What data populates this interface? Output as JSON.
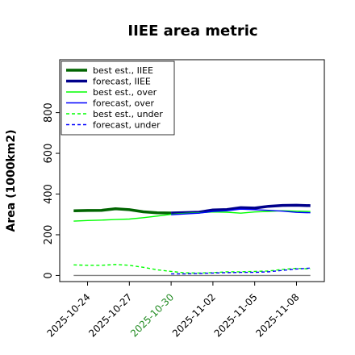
{
  "chart_data": {
    "type": "line",
    "title": "IIEE area metric",
    "xlabel": "",
    "ylabel": "Area (1000km2)",
    "x": [
      "2025-10-23",
      "2025-10-24",
      "2025-10-25",
      "2025-10-26",
      "2025-10-27",
      "2025-10-28",
      "2025-10-29",
      "2025-10-30",
      "2025-10-31",
      "2025-11-01",
      "2025-11-02",
      "2025-11-03",
      "2025-11-04",
      "2025-11-05",
      "2025-11-06",
      "2025-11-07",
      "2025-11-08",
      "2025-11-09"
    ],
    "xticks": [
      "2025-10-24",
      "2025-10-27",
      "2025-10-30",
      "2025-11-02",
      "2025-11-05",
      "2025-11-08"
    ],
    "highlight_tick": "2025-10-30",
    "highlight_color": "#228b22",
    "xlim": [
      "2025-10-22",
      "2025-11-10"
    ],
    "ylim": [
      -30,
      1060
    ],
    "yticks": [
      0,
      200,
      400,
      600,
      800
    ],
    "grid": false,
    "legend_position": "top-left",
    "series": [
      {
        "name": "best est., IIEE",
        "color": "#006400",
        "style": "solid",
        "width": "thick",
        "x": [
          "2025-10-23",
          "2025-10-24",
          "2025-10-25",
          "2025-10-26",
          "2025-10-27",
          "2025-10-28",
          "2025-10-29",
          "2025-10-30"
        ],
        "values": [
          318,
          319,
          320,
          328,
          323,
          313,
          308,
          307
        ]
      },
      {
        "name": "forecast, IIEE",
        "color": "#00008b",
        "style": "solid",
        "width": "thick",
        "x": [
          "2025-10-30",
          "2025-10-31",
          "2025-11-01",
          "2025-11-02",
          "2025-11-03",
          "2025-11-04",
          "2025-11-05",
          "2025-11-06",
          "2025-11-07",
          "2025-11-08",
          "2025-11-09"
        ],
        "values": [
          307,
          309,
          311,
          322,
          324,
          333,
          331,
          340,
          344,
          345,
          343
        ]
      },
      {
        "name": "best est., over",
        "color": "#00ff00",
        "style": "solid",
        "width": "thin",
        "x": [
          "2025-10-23",
          "2025-10-24",
          "2025-10-25",
          "2025-10-26",
          "2025-10-27",
          "2025-10-28",
          "2025-10-29",
          "2025-10-30",
          "2025-10-31",
          "2025-11-01",
          "2025-11-02",
          "2025-11-03",
          "2025-11-04",
          "2025-11-05",
          "2025-11-06",
          "2025-11-07",
          "2025-11-08",
          "2025-11-09"
        ],
        "values": [
          267,
          270,
          272,
          275,
          277,
          284,
          292,
          300,
          305,
          308,
          312,
          311,
          306,
          312,
          315,
          318,
          316,
          314
        ]
      },
      {
        "name": "forecast, over",
        "color": "#0000ff",
        "style": "solid",
        "width": "thin",
        "x": [
          "2025-10-30",
          "2025-10-31",
          "2025-11-01",
          "2025-11-02",
          "2025-11-03",
          "2025-11-04",
          "2025-11-05",
          "2025-11-06",
          "2025-11-07",
          "2025-11-08",
          "2025-11-09"
        ],
        "values": [
          298,
          302,
          306,
          315,
          318,
          326,
          323,
          320,
          316,
          310,
          308
        ]
      },
      {
        "name": "best est., under",
        "color": "#00ff00",
        "style": "dashed",
        "width": "thin",
        "x": [
          "2025-10-23",
          "2025-10-24",
          "2025-10-25",
          "2025-10-26",
          "2025-10-27",
          "2025-10-28",
          "2025-10-29",
          "2025-10-30",
          "2025-10-31",
          "2025-11-01",
          "2025-11-02",
          "2025-11-03",
          "2025-11-04",
          "2025-11-05",
          "2025-11-06",
          "2025-11-07",
          "2025-11-08",
          "2025-11-09"
        ],
        "values": [
          52,
          50,
          50,
          54,
          50,
          40,
          28,
          20,
          13,
          12,
          14,
          18,
          18,
          20,
          22,
          30,
          35,
          32
        ]
      },
      {
        "name": "forecast, under",
        "color": "#0000ff",
        "style": "dashed",
        "width": "thin",
        "x": [
          "2025-10-30",
          "2025-10-31",
          "2025-11-01",
          "2025-11-02",
          "2025-11-03",
          "2025-11-04",
          "2025-11-05",
          "2025-11-06",
          "2025-11-07",
          "2025-11-08",
          "2025-11-09"
        ],
        "values": [
          8,
          8,
          10,
          12,
          14,
          15,
          15,
          18,
          25,
          32,
          36
        ]
      },
      {
        "name": "",
        "color": "#808080",
        "style": "solid",
        "width": "thin",
        "x": [
          "2025-10-23",
          "2025-11-09"
        ],
        "values": [
          0,
          0
        ]
      }
    ]
  }
}
